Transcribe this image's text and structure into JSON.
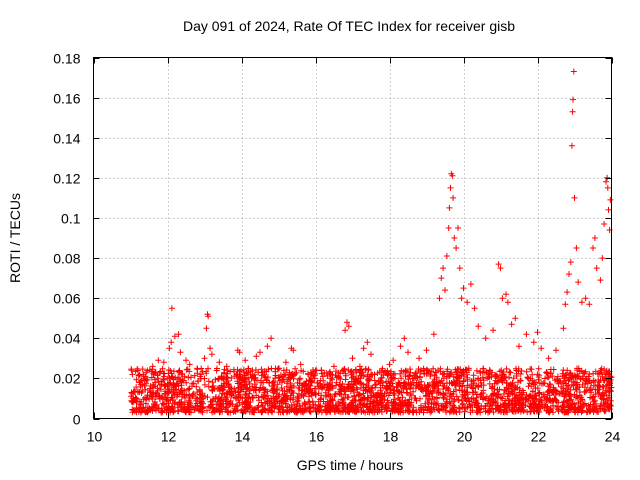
{
  "chart_data": {
    "type": "scatter",
    "title": "Day 091 of 2024, Rate Of TEC Index for receiver gisb",
    "xlabel": "GPS time / hours",
    "ylabel": "ROTI / TECUs",
    "xlim": [
      10,
      24
    ],
    "ylim": [
      0,
      0.18
    ],
    "xticks": [
      10,
      12,
      14,
      16,
      18,
      20,
      22,
      24
    ],
    "xtick_labels": [
      "10",
      "12",
      "14",
      "16",
      "18",
      "20",
      "22",
      "24"
    ],
    "yticks": [
      0,
      0.02,
      0.04,
      0.06,
      0.08,
      0.1,
      0.12,
      0.14,
      0.16,
      0.18
    ],
    "ytick_labels": [
      "0",
      "0.02",
      "0.04",
      "0.06",
      "0.08",
      "0.1",
      "0.12",
      "0.14",
      "0.16",
      "0.18"
    ],
    "grid": true,
    "marker": "plus",
    "color": "#ff0000",
    "series": [
      {
        "name": "ROTI",
        "dense_band": {
          "x_range": [
            11.0,
            24.0
          ],
          "y_range": [
            0.003,
            0.025
          ]
        },
        "points": [
          [
            11.05,
            0.022
          ],
          [
            11.2,
            0.024
          ],
          [
            11.4,
            0.021
          ],
          [
            11.6,
            0.026
          ],
          [
            11.75,
            0.029
          ],
          [
            11.9,
            0.028
          ],
          [
            12.05,
            0.035
          ],
          [
            12.1,
            0.038
          ],
          [
            12.12,
            0.055
          ],
          [
            12.2,
            0.041
          ],
          [
            12.3,
            0.042
          ],
          [
            12.35,
            0.033
          ],
          [
            12.5,
            0.029
          ],
          [
            12.6,
            0.027
          ],
          [
            12.8,
            0.025
          ],
          [
            13.0,
            0.03
          ],
          [
            13.05,
            0.045
          ],
          [
            13.08,
            0.052
          ],
          [
            13.1,
            0.051
          ],
          [
            13.15,
            0.035
          ],
          [
            13.2,
            0.032
          ],
          [
            13.4,
            0.028
          ],
          [
            13.6,
            0.026
          ],
          [
            13.9,
            0.034
          ],
          [
            13.95,
            0.033
          ],
          [
            14.1,
            0.029
          ],
          [
            14.4,
            0.031
          ],
          [
            14.5,
            0.033
          ],
          [
            14.7,
            0.036
          ],
          [
            14.8,
            0.04
          ],
          [
            15.0,
            0.025
          ],
          [
            15.2,
            0.028
          ],
          [
            15.35,
            0.035
          ],
          [
            15.4,
            0.034
          ],
          [
            15.6,
            0.027
          ],
          [
            15.8,
            0.022
          ],
          [
            16.0,
            0.024
          ],
          [
            16.2,
            0.021
          ],
          [
            16.5,
            0.026
          ],
          [
            16.8,
            0.044
          ],
          [
            16.85,
            0.048
          ],
          [
            16.9,
            0.046
          ],
          [
            17.0,
            0.03
          ],
          [
            17.2,
            0.026
          ],
          [
            17.3,
            0.035
          ],
          [
            17.4,
            0.038
          ],
          [
            17.5,
            0.032
          ],
          [
            17.8,
            0.024
          ],
          [
            18.0,
            0.027
          ],
          [
            18.1,
            0.029
          ],
          [
            18.3,
            0.036
          ],
          [
            18.4,
            0.04
          ],
          [
            18.5,
            0.033
          ],
          [
            18.8,
            0.03
          ],
          [
            19.0,
            0.034
          ],
          [
            19.2,
            0.042
          ],
          [
            19.35,
            0.06
          ],
          [
            19.4,
            0.07
          ],
          [
            19.45,
            0.075
          ],
          [
            19.5,
            0.064
          ],
          [
            19.55,
            0.081
          ],
          [
            19.6,
            0.095
          ],
          [
            19.62,
            0.105
          ],
          [
            19.65,
            0.115
          ],
          [
            19.67,
            0.122
          ],
          [
            19.7,
            0.121
          ],
          [
            19.72,
            0.11
          ],
          [
            19.75,
            0.09
          ],
          [
            19.8,
            0.085
          ],
          [
            19.85,
            0.095
          ],
          [
            19.9,
            0.075
          ],
          [
            19.95,
            0.06
          ],
          [
            20.0,
            0.065
          ],
          [
            20.1,
            0.058
          ],
          [
            20.2,
            0.067
          ],
          [
            20.3,
            0.055
          ],
          [
            20.4,
            0.046
          ],
          [
            20.6,
            0.04
          ],
          [
            20.8,
            0.044
          ],
          [
            20.95,
            0.077
          ],
          [
            21.0,
            0.075
          ],
          [
            21.05,
            0.06
          ],
          [
            21.15,
            0.062
          ],
          [
            21.2,
            0.058
          ],
          [
            21.3,
            0.047
          ],
          [
            21.4,
            0.05
          ],
          [
            21.5,
            0.036
          ],
          [
            21.7,
            0.042
          ],
          [
            21.9,
            0.038
          ],
          [
            22.0,
            0.043
          ],
          [
            22.1,
            0.035
          ],
          [
            22.3,
            0.03
          ],
          [
            22.5,
            0.034
          ],
          [
            22.7,
            0.045
          ],
          [
            22.75,
            0.057
          ],
          [
            22.8,
            0.063
          ],
          [
            22.85,
            0.072
          ],
          [
            22.9,
            0.078
          ],
          [
            22.93,
            0.136
          ],
          [
            22.95,
            0.153
          ],
          [
            22.96,
            0.159
          ],
          [
            22.98,
            0.173
          ],
          [
            23.0,
            0.11
          ],
          [
            23.05,
            0.085
          ],
          [
            23.1,
            0.068
          ],
          [
            23.2,
            0.058
          ],
          [
            23.3,
            0.06
          ],
          [
            23.4,
            0.057
          ],
          [
            23.5,
            0.085
          ],
          [
            23.55,
            0.09
          ],
          [
            23.6,
            0.075
          ],
          [
            23.7,
            0.069
          ],
          [
            23.75,
            0.08
          ],
          [
            23.8,
            0.097
          ],
          [
            23.85,
            0.118
          ],
          [
            23.88,
            0.12
          ],
          [
            23.9,
            0.115
          ],
          [
            23.92,
            0.104
          ],
          [
            23.95,
            0.094
          ],
          [
            23.97,
            0.109
          ]
        ]
      }
    ]
  }
}
